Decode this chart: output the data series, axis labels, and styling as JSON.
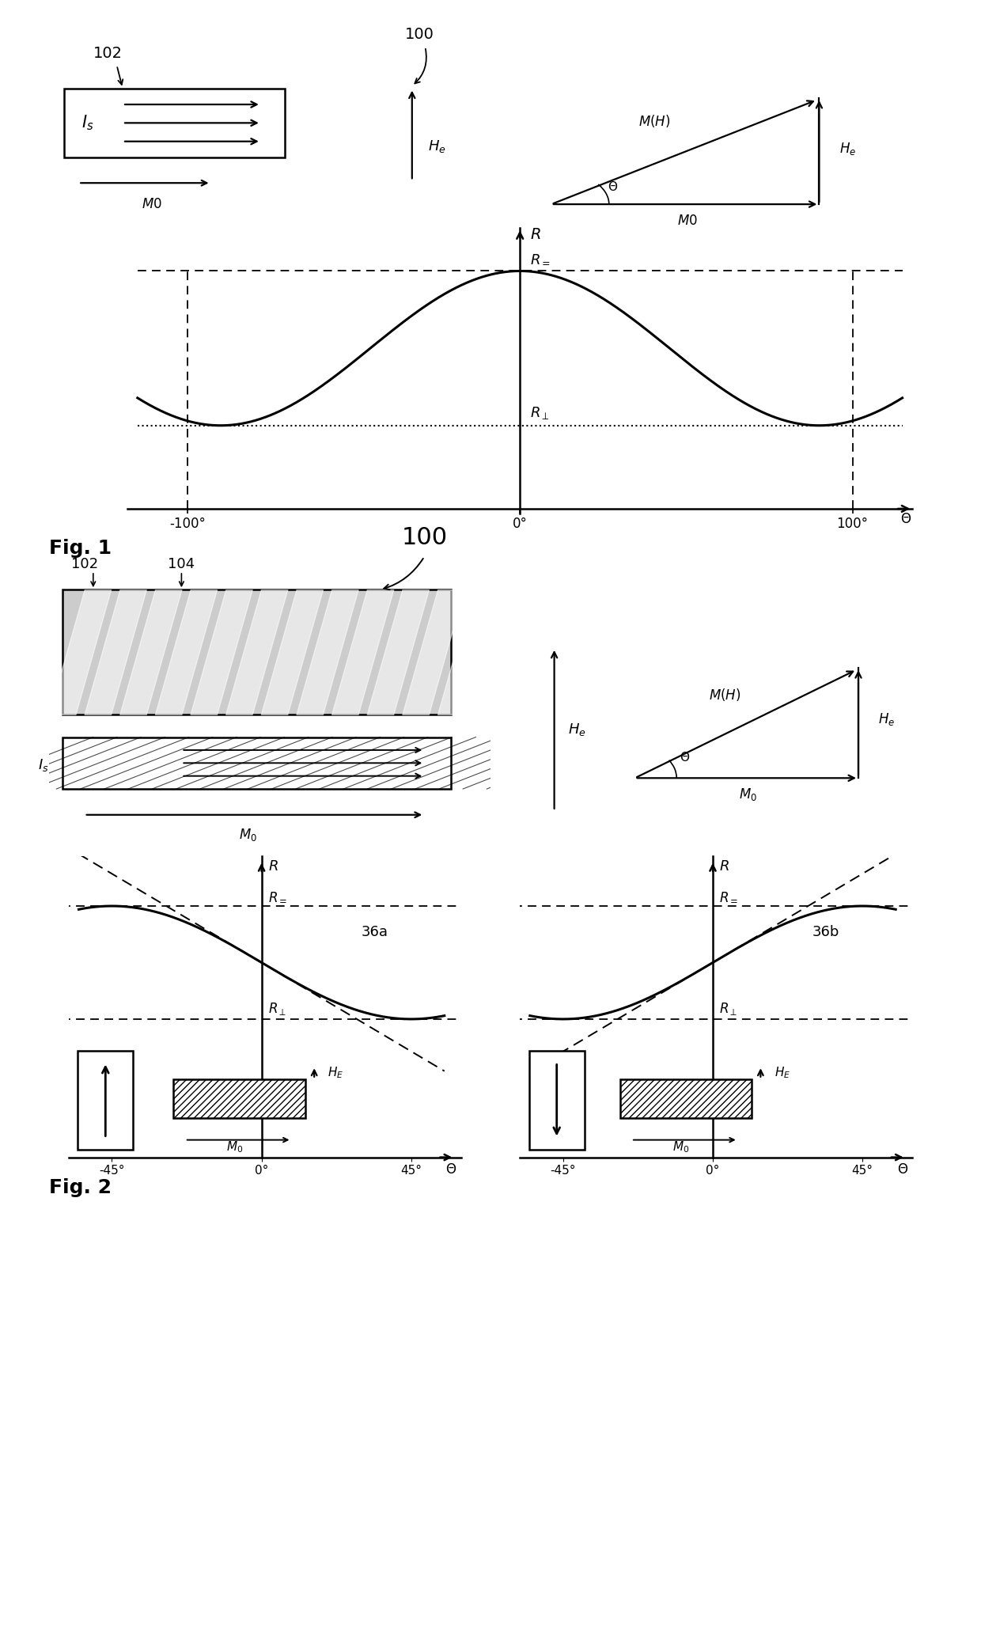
{
  "background": "#ffffff",
  "R_par": 1.0,
  "R_perp": 0.35,
  "R_par2": 1.0,
  "R_perp2": 0.55,
  "fig1_xtick_vals": [
    -100,
    0,
    100
  ],
  "fig1_xtick_labels": [
    "-100°",
    "0°",
    "100°"
  ],
  "fig2_xtick_vals": [
    -45,
    0,
    45
  ],
  "fig2_xtick_labels": [
    "-45°",
    "0°",
    "45°"
  ]
}
